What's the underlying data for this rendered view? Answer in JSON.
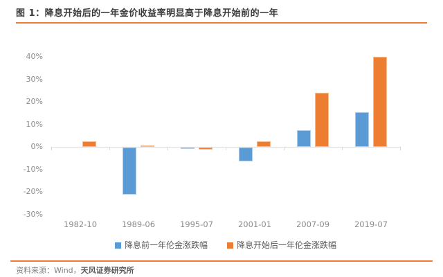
{
  "header": {
    "figure_label": "图 1：",
    "title": "降息开始后的一年金价收益率明显高于降息开始前的一年"
  },
  "chart_data": {
    "type": "bar",
    "title": "降息开始后的一年金价收益率明显高于降息开始前的一年",
    "categories": [
      "1982-10",
      "1989-06",
      "1995-07",
      "2001-01",
      "2007-09",
      "2019-07"
    ],
    "series": [
      {
        "name": "降息前一年伦金涨跌幅",
        "color": "#5B9BD5",
        "border_color": "#ADCDEC",
        "values": [
          0,
          -21,
          -0.5,
          -6,
          7.5,
          15.5
        ]
      },
      {
        "name": "降息开始后一年伦金涨跌幅",
        "color": "#ED7D31",
        "border_color": "#F6BE8E",
        "values": [
          2.5,
          0.5,
          -1,
          2.5,
          24,
          40
        ]
      }
    ],
    "ylim": [
      -30,
      40
    ],
    "ytick_labels": [
      "40%",
      "30%",
      "20%",
      "10%",
      "0%",
      "-10%",
      "-20%",
      "-30%"
    ],
    "ytick_values": [
      40,
      30,
      20,
      10,
      0,
      -10,
      -20,
      -30
    ],
    "unit": "%",
    "grid": false,
    "legend_position": "bottom"
  },
  "footer": {
    "source_prefix": "资料来源：Wind，",
    "source_org": "天风证券研究所"
  },
  "colors": {
    "accent_orange": "#ED7D31",
    "bar_blue": "#5B9BD5",
    "axis_gray": "#D9D9D9",
    "tick_label_gray": "#8c8c8c",
    "title_dark": "#3b3b3b",
    "legend_gray": "#595959"
  }
}
